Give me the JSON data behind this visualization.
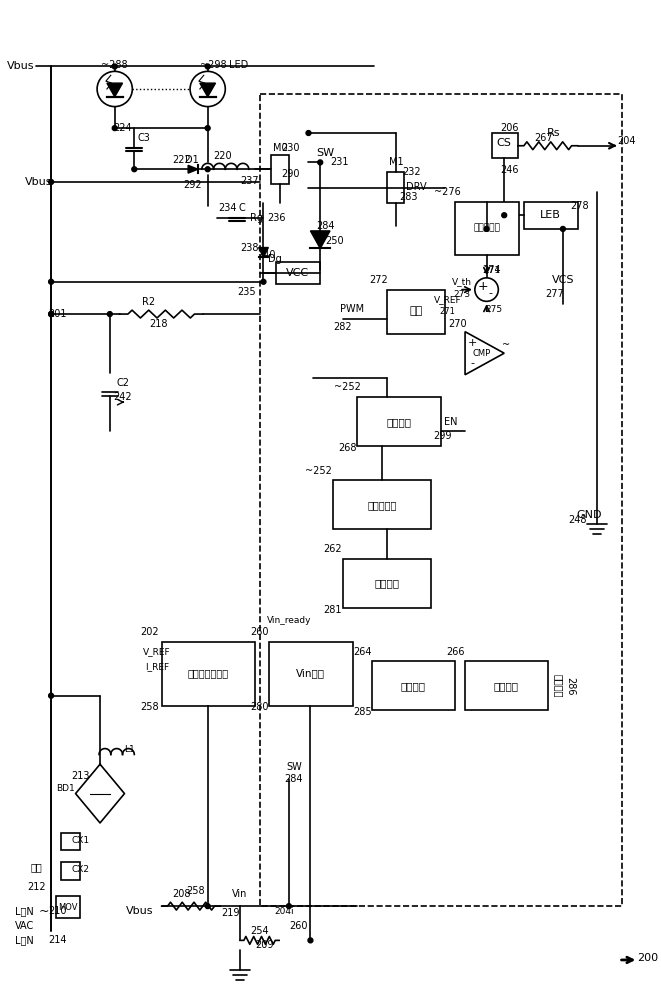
{
  "bg_color": "#ffffff",
  "line_color": "#000000",
  "box_labels": {
    "voltage_lock": "电压锁位器",
    "control_logic": "控制逻辑",
    "energy_detect": "能量检测",
    "ref_voltage": "基准电压和电流",
    "vin_detect": "Vin检测",
    "demag_detect": "退磁检测",
    "valley_detect": "波谷检测",
    "drive": "驱动",
    "hi_lo_comp": "高低线补偿",
    "leb": "LEB",
    "first_valley": "第一波谷"
  }
}
